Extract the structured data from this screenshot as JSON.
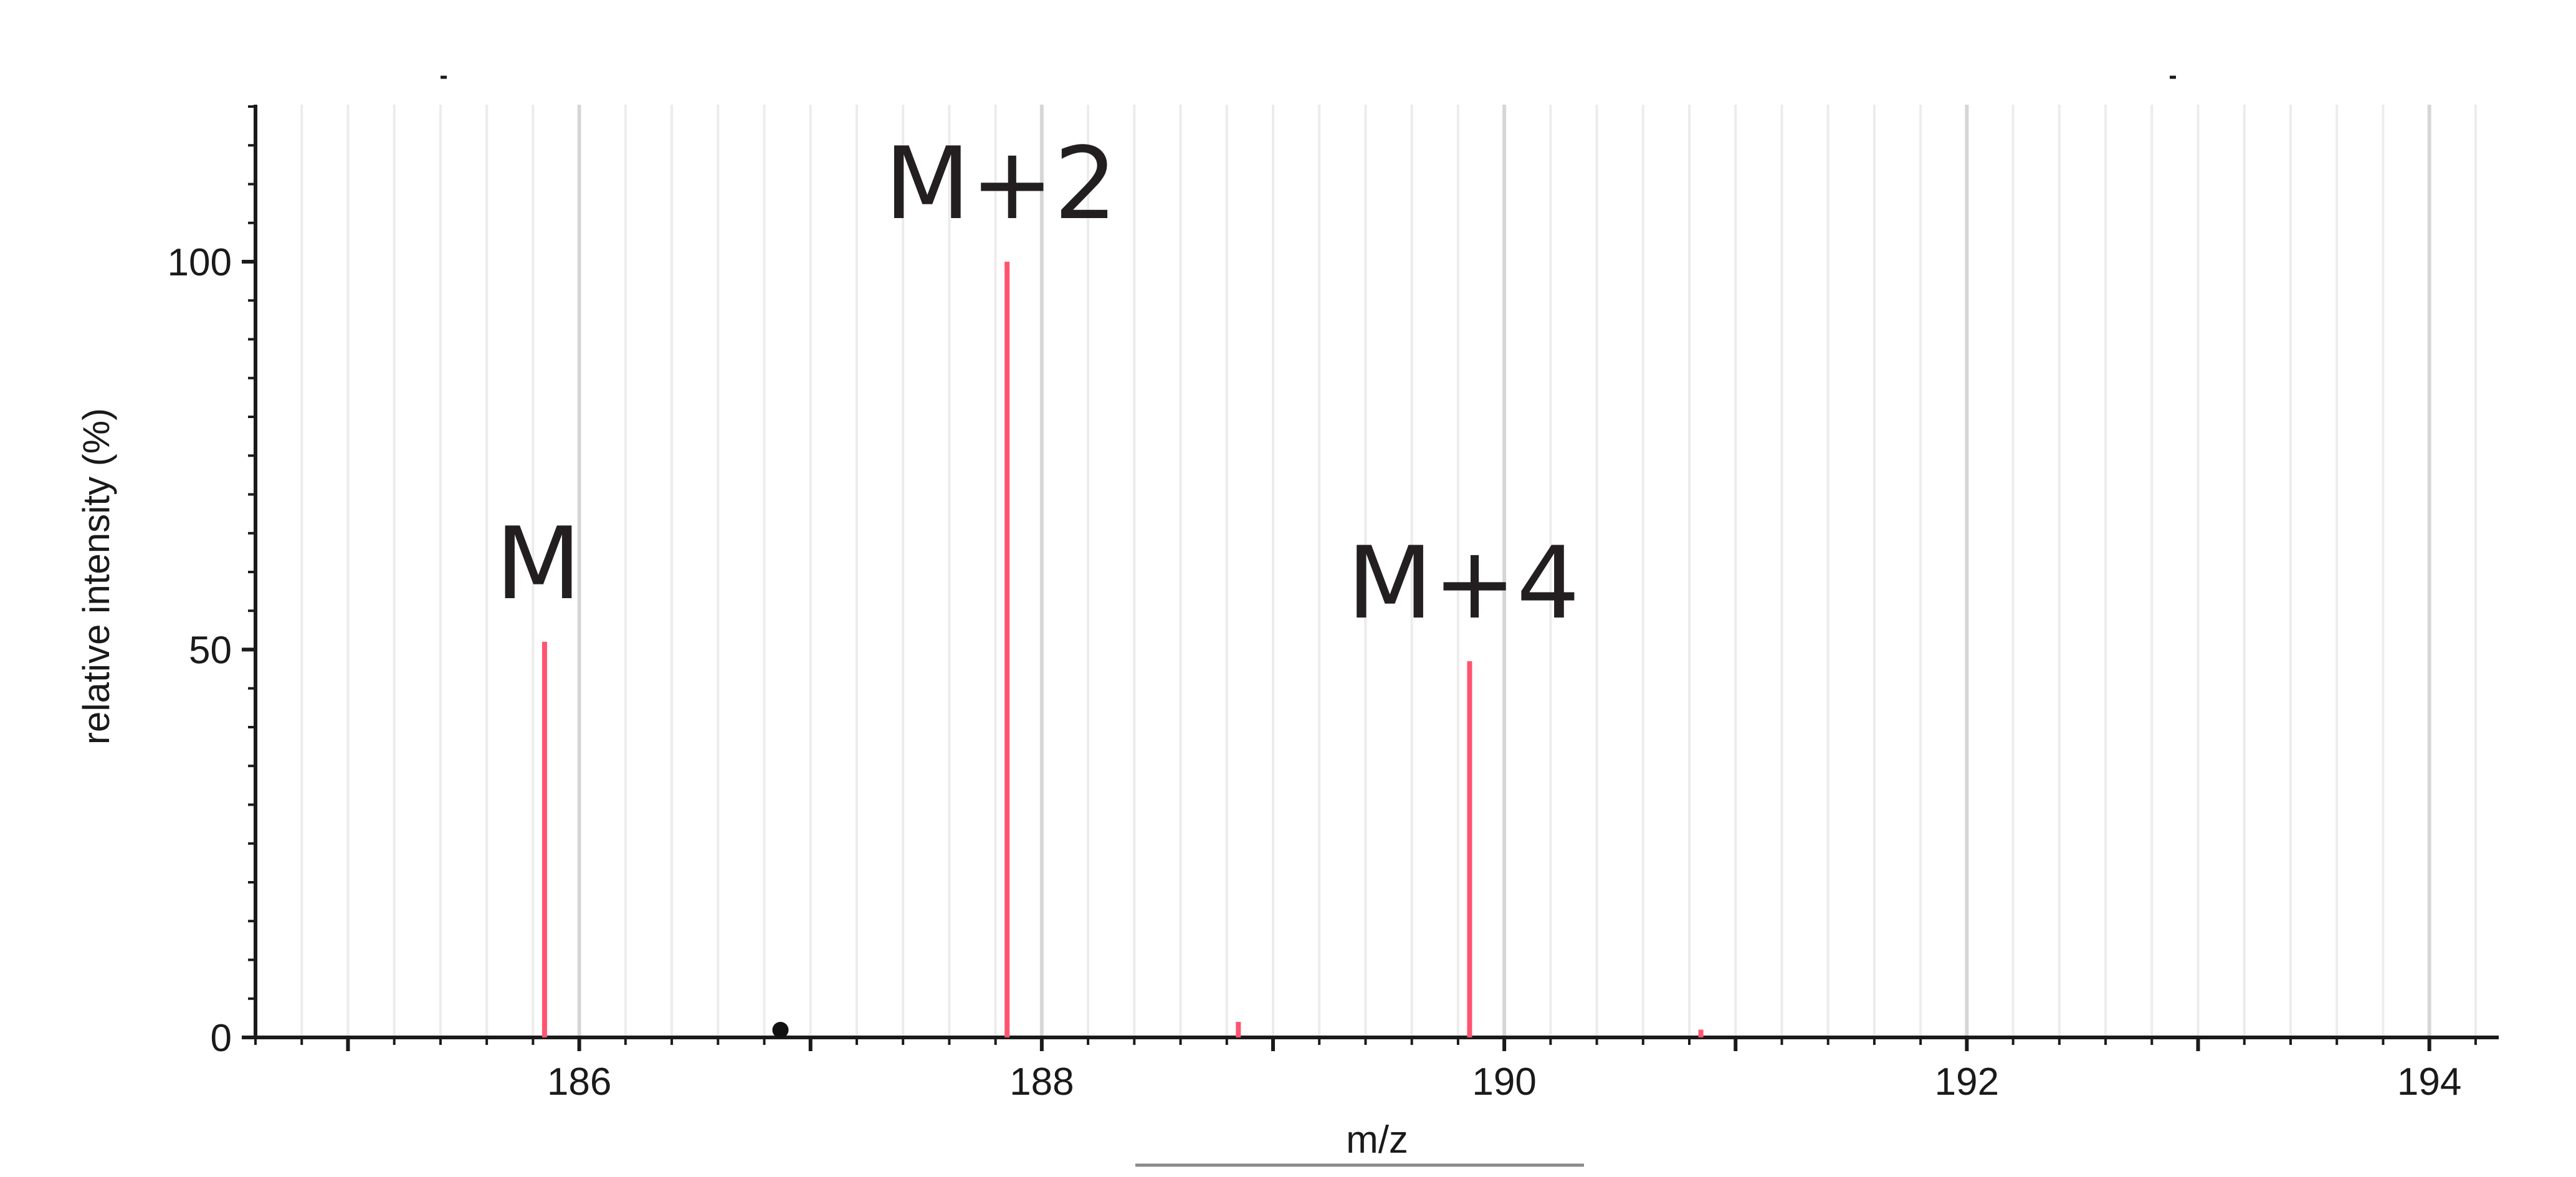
{
  "chart_data": {
    "type": "bar",
    "title": "",
    "xlabel": "m/z",
    "ylabel": "relative intensity (%)",
    "xlim": [
      184.6,
      194.3
    ],
    "ylim": [
      0,
      100
    ],
    "x_ticks": [
      "186",
      "188",
      "190",
      "192",
      "194"
    ],
    "y_ticks": [
      "0",
      "50",
      "100"
    ],
    "grid": true,
    "color": "#ff5470",
    "series": [
      {
        "x": [
          185.85,
          187.85,
          188.85,
          189.85,
          190.85
        ],
        "values": [
          51,
          100,
          2,
          48.5,
          1
        ]
      }
    ],
    "annotations": [
      {
        "text": "M",
        "x": 185.85
      },
      {
        "text": "M+2",
        "x": 187.85
      },
      {
        "text": "M+4",
        "x": 189.85
      }
    ],
    "marker_x": 186.87
  }
}
